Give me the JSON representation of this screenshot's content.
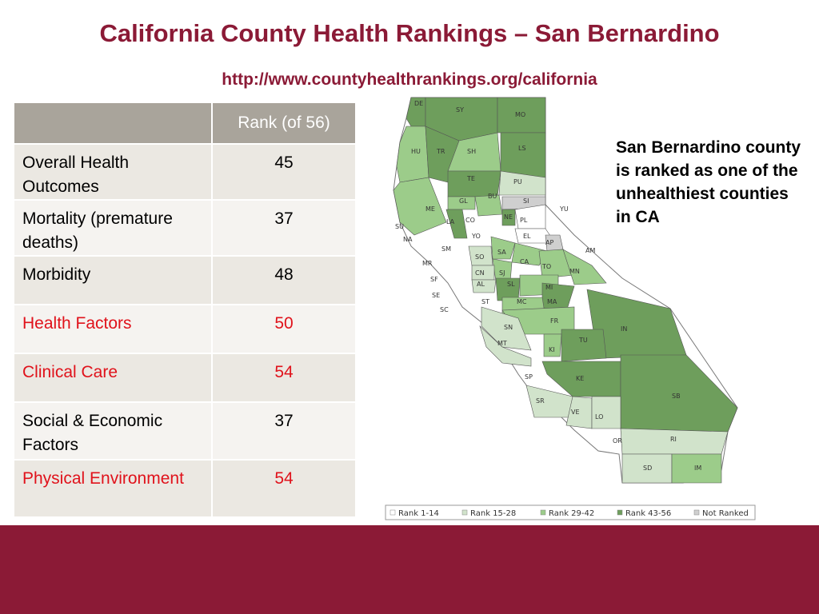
{
  "header": {
    "title": "California County Health Rankings – San Bernardino",
    "url": "http://www.countyhealthrankings.org/california"
  },
  "table": {
    "header_col1": "",
    "header_col2": "Rank  (of 56)",
    "rows": [
      {
        "label": "Overall Health Outcomes",
        "value": "45"
      },
      {
        "label": "Mortality (premature deaths)",
        "value": "37"
      },
      {
        "label": "Morbidity",
        "value": "48"
      },
      {
        "label": "Health Factors",
        "value": "50"
      },
      {
        "label": "Clinical Care",
        "value": "54"
      },
      {
        "label": "Social & Economic Factors",
        "value": "37"
      },
      {
        "label": "Physical Environment",
        "value": "54"
      }
    ]
  },
  "note": "San Bernardino county is ranked as  one of the unhealthiest counties in CA",
  "map": {
    "colors": {
      "rank_1_14": "#ffffff",
      "rank_15_28": "#d1e3cb",
      "rank_29_42": "#9ccc8a",
      "rank_43_56": "#6e9e5c",
      "not_ranked": "#cfcfcf"
    },
    "counties": [
      "DE",
      "SY",
      "MO",
      "HU",
      "TR",
      "SH",
      "LS",
      "TE",
      "PU",
      "GL",
      "BU",
      "SI",
      "ME",
      "LA",
      "CO",
      "NE",
      "PL",
      "YU",
      "SU",
      "YO",
      "EL",
      "AP",
      "NA",
      "SM",
      "SO",
      "SA",
      "AM",
      "MR",
      "CA",
      "TO",
      "CN",
      "SJ",
      "MN",
      "SF",
      "AL",
      "SL",
      "MI",
      "SE",
      "ST",
      "MC",
      "MA",
      "SC",
      "FR",
      "IN",
      "SN",
      "MT",
      "TU",
      "KI",
      "SP",
      "KE",
      "SB",
      "SR",
      "VE",
      "LO",
      "OR",
      "RI",
      "SD",
      "IM"
    ],
    "legend": [
      "Rank 1-14",
      "Rank 15-28",
      "Rank 29-42",
      "Rank 43-56",
      "Not Ranked"
    ]
  }
}
